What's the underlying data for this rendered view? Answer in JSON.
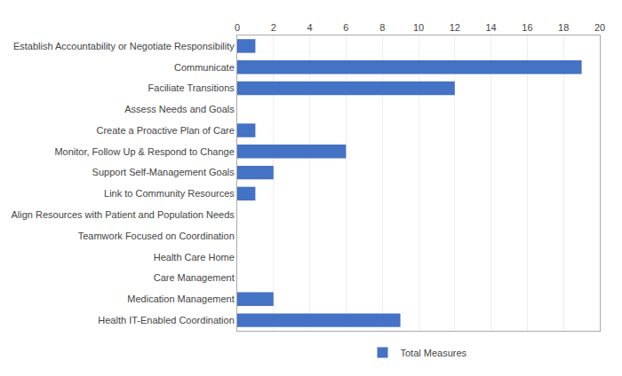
{
  "chart_data": {
    "type": "bar",
    "orientation": "horizontal",
    "categories": [
      "Establish Accountability or Negotiate Responsibility",
      "Communicate",
      "Faciliate Transitions",
      "Assess Needs and Goals",
      "Create a Proactive Plan of Care",
      "Monitor, Follow Up & Respond to Change",
      "Support Self-Management Goals",
      "Link to Community Resources",
      "Align Resources with Patient and Population Needs",
      "Teamwork Focused on Coordination",
      "Health Care Home",
      "Care Management",
      "Medication Management",
      "Health IT-Enabled Coordination"
    ],
    "series": [
      {
        "name": "Total Measures",
        "color": "#4472C4",
        "values": [
          1,
          19,
          12,
          0,
          1,
          6,
          2,
          1,
          0,
          0,
          0,
          0,
          2,
          9
        ]
      }
    ],
    "xlim": [
      0,
      20
    ],
    "xticks": [
      0,
      2,
      4,
      6,
      8,
      10,
      12,
      14,
      16,
      18,
      20
    ],
    "grid": true,
    "legend": "bottom"
  }
}
